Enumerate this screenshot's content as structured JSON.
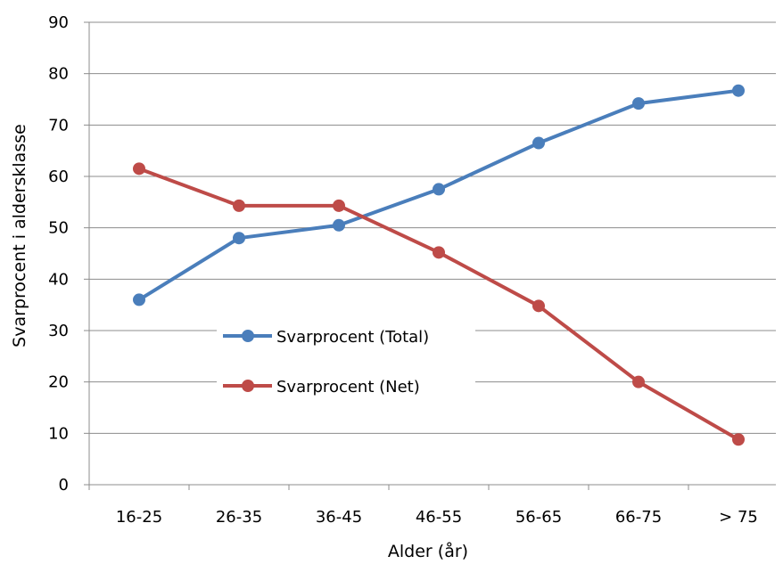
{
  "chart_data": {
    "type": "line",
    "title": "",
    "xlabel": "Alder (år)",
    "ylabel": "Svarprocent i aldersklasse",
    "categories": [
      "16-25",
      "26-35",
      "36-45",
      "46-55",
      "56-65",
      "66-75",
      "> 75"
    ],
    "ylim": [
      0,
      90
    ],
    "yticks": [
      "0",
      "10",
      "20",
      "30",
      "40",
      "50",
      "60",
      "70",
      "80",
      "90"
    ],
    "grid": true,
    "legend_position": "center-left",
    "series": [
      {
        "name": "Svarprocent (Total)",
        "color": "#4A7EBB",
        "values": [
          36,
          48,
          50.5,
          57.5,
          66.5,
          74.2,
          76.7
        ]
      },
      {
        "name": "Svarprocent (Net)",
        "color": "#BE4B48",
        "values": [
          61.5,
          54.3,
          54.3,
          45.2,
          34.8,
          20,
          8.8
        ]
      }
    ]
  }
}
